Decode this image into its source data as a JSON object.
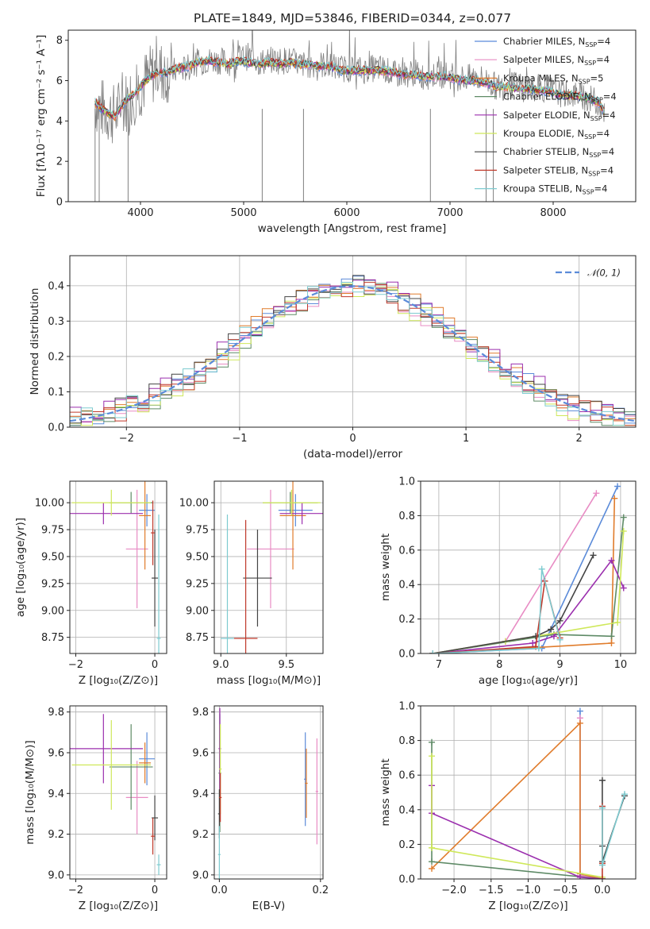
{
  "figure_title": "PLATE=1849, MJD=53846, FIBERID=0344, z=0.077",
  "colors": {
    "Chabrier MILES": "#5b8bd9",
    "Salpeter MILES": "#e88cc4",
    "Kroupa MILES": "#e07c2c",
    "Chabrier ELODIE": "#5e8a66",
    "Salpeter ELODIE": "#9b2fae",
    "Kroupa ELODIE": "#cfe85a",
    "Chabrier STELIB": "#444444",
    "Salpeter STELIB": "#c0392b",
    "Kroupa STELIB": "#7ecbd0"
  },
  "chart_data": [
    {
      "id": "spectrum",
      "type": "line",
      "title": "PLATE=1849, MJD=53846, FIBERID=0344, z=0.077",
      "xlabel": "wavelength [Angstrom, rest frame]",
      "ylabel": "Flux [fλ10⁻¹⁷ erg cm⁻² s⁻¹ A⁻¹]",
      "xlim": [
        3300,
        8800
      ],
      "ylim": [
        0,
        8.5
      ],
      "xticks": [
        4000,
        5000,
        6000,
        7000,
        8000
      ],
      "yticks": [
        0,
        2,
        4,
        6,
        8
      ],
      "grid": false,
      "legend_position": "top-right",
      "legend": [
        {
          "model": "Chabrier MILES",
          "label": "Chabrier MILES, N",
          "sub": "SSP",
          "eq": "=4"
        },
        {
          "model": "Salpeter MILES",
          "label": "Salpeter MILES, N",
          "sub": "SSP",
          "eq": "=4"
        },
        {
          "model": "Kroupa MILES",
          "label": "Kroupa MILES, N",
          "sub": "SSP",
          "eq": "=5"
        },
        {
          "model": "Chabrier ELODIE",
          "label": "Chabrier ELODIE, N",
          "sub": "SSP",
          "eq": "=4"
        },
        {
          "model": "Salpeter ELODIE",
          "label": "Salpeter ELODIE, N",
          "sub": "SSP",
          "eq": "=4"
        },
        {
          "model": "Kroupa ELODIE",
          "label": "Kroupa ELODIE, N",
          "sub": "SSP",
          "eq": "=4"
        },
        {
          "model": "Chabrier STELIB",
          "label": "Chabrier STELIB, N",
          "sub": "SSP",
          "eq": "=4"
        },
        {
          "model": "Salpeter STELIB",
          "label": "Salpeter STELIB, N",
          "sub": "SSP",
          "eq": "=4"
        },
        {
          "model": "Kroupa STELIB",
          "label": "Kroupa STELIB, N",
          "sub": "SSP",
          "eq": "=4"
        }
      ],
      "observed_flux": {
        "color": "#808080",
        "x": [
          3560,
          3650,
          3750,
          3850,
          3950,
          4050,
          4150,
          4250,
          4350,
          4450,
          4550,
          4650,
          4750,
          4850,
          4950,
          5050,
          5150,
          5250,
          5350,
          5450,
          5550,
          5650,
          5750,
          5850,
          5950,
          6050,
          6150,
          6250,
          6350,
          6450,
          6550,
          6650,
          6750,
          6850,
          6950,
          7050,
          7150,
          7250,
          7350,
          7450,
          7550,
          7650,
          7750,
          7850,
          7950,
          8050,
          8150,
          8250,
          8350,
          8450,
          8500
        ],
        "y": [
          4.9,
          4.5,
          4.3,
          4.9,
          5.4,
          6.0,
          6.5,
          6.4,
          6.5,
          6.6,
          6.9,
          7.0,
          7.0,
          6.9,
          7.1,
          7.2,
          6.9,
          7.0,
          7.0,
          7.0,
          6.8,
          6.8,
          6.8,
          6.7,
          6.6,
          6.6,
          6.5,
          6.6,
          6.6,
          6.3,
          6.3,
          6.4,
          6.2,
          6.3,
          6.3,
          6.2,
          6.1,
          6.2,
          6.0,
          5.7,
          5.7,
          5.8,
          5.7,
          5.6,
          5.6,
          5.4,
          5.3,
          5.3,
          5.1,
          4.9,
          4.4
        ]
      },
      "model_fit": {
        "x": [
          3560,
          3650,
          3750,
          3850,
          3950,
          4050,
          4150,
          4250,
          4350,
          4450,
          4550,
          4650,
          4750,
          4850,
          4950,
          5050,
          5150,
          5250,
          5350,
          5450,
          5550,
          5650,
          5750,
          5850,
          5950,
          6050,
          6150,
          6250,
          6350,
          6450,
          6550,
          6650,
          6750,
          6850,
          6950,
          7050,
          7150,
          7250,
          7350,
          7450,
          7550,
          7650,
          7750,
          7850,
          7950,
          8050,
          8150,
          8250,
          8350,
          8450,
          8500
        ],
        "y": [
          4.9,
          4.5,
          4.2,
          5.0,
          5.4,
          6.0,
          6.4,
          6.4,
          6.6,
          6.7,
          6.9,
          7.0,
          6.9,
          6.8,
          7.0,
          6.9,
          6.8,
          6.9,
          6.8,
          6.9,
          6.8,
          6.8,
          6.7,
          6.7,
          6.5,
          6.5,
          6.5,
          6.5,
          6.5,
          6.4,
          6.3,
          6.3,
          6.2,
          6.2,
          6.2,
          6.1,
          6.0,
          6.0,
          5.9,
          5.7,
          5.7,
          5.6,
          5.6,
          5.5,
          5.5,
          5.3,
          5.3,
          5.2,
          5.1,
          4.9,
          4.4
        ]
      },
      "edge_drops_x": [
        3560,
        3600,
        3880,
        5180,
        5580,
        6810,
        7350,
        7420
      ]
    },
    {
      "id": "residuals",
      "type": "line",
      "xlabel": "(data-model)/error",
      "ylabel": "Normed distribution",
      "xlim": [
        -2.5,
        2.5
      ],
      "ylim": [
        0,
        0.485
      ],
      "xticks": [
        -2,
        -1,
        0,
        1,
        2
      ],
      "yticks": [
        0.0,
        0.1,
        0.2,
        0.3,
        0.4
      ],
      "grid": true,
      "legend_position": "top-right",
      "legend_label": "𝒩(0, 1)",
      "reference_curve": {
        "label": "𝒩(0, 1)",
        "mean": 0,
        "sigma": 1,
        "style": "dashed",
        "color": "#5b8bd9"
      },
      "bins_start": -2.5,
      "bin_width": 0.1,
      "histograms": [
        {
          "model": "Chabrier MILES",
          "offset": 0.002
        },
        {
          "model": "Salpeter MILES",
          "offset": -0.012
        },
        {
          "model": "Kroupa MILES",
          "offset": 0.008
        },
        {
          "model": "Chabrier ELODIE",
          "offset": -0.006
        },
        {
          "model": "Salpeter ELODIE",
          "offset": 0.012
        },
        {
          "model": "Kroupa ELODIE",
          "offset": -0.014
        },
        {
          "model": "Chabrier STELIB",
          "offset": 0.006
        },
        {
          "model": "Salpeter STELIB",
          "offset": -0.004
        },
        {
          "model": "Kroupa STELIB",
          "offset": 0.0
        }
      ]
    },
    {
      "id": "age-vs-Z",
      "type": "scatter",
      "xlabel": "Z [log₁₀(Z/Z⊙)]",
      "ylabel": "age  [log₁₀(age/yr)]",
      "xlim": [
        -2.15,
        0.3
      ],
      "ylim": [
        8.6,
        10.2
      ],
      "xticks": [
        -2,
        0
      ],
      "yticks": [
        8.75,
        9.0,
        9.25,
        9.5,
        9.75,
        10.0
      ],
      "grid": true,
      "points": [
        {
          "model": "Chabrier MILES",
          "x": -0.2,
          "xerr": 0.2,
          "y": 9.93,
          "yerr": 0.15
        },
        {
          "model": "Salpeter MILES",
          "x": -0.45,
          "xerr": 0.28,
          "y": 9.57,
          "yerr": 0.55
        },
        {
          "model": "Kroupa MILES",
          "x": -0.25,
          "xerr": 0.15,
          "y": 9.88,
          "yerr": 0.5
        },
        {
          "model": "Chabrier ELODIE",
          "x": -0.6,
          "xerr": 0.55,
          "y": 10.0,
          "yerr": 0.1
        },
        {
          "model": "Salpeter ELODIE",
          "x": -1.3,
          "xerr": 1.0,
          "y": 9.9,
          "yerr": 0.1
        },
        {
          "model": "Kroupa ELODIE",
          "x": -1.1,
          "xerr": 1.0,
          "y": 10.0,
          "yerr": 0.12
        },
        {
          "model": "Chabrier STELIB",
          "x": 0.0,
          "xerr": 0.08,
          "y": 9.3,
          "yerr": 0.45
        },
        {
          "model": "Salpeter STELIB",
          "x": -0.05,
          "xerr": 0.05,
          "y": 9.72,
          "yerr": 0.3
        },
        {
          "model": "Kroupa STELIB",
          "x": 0.1,
          "xerr": 0.05,
          "y": 8.74,
          "yerr": 1.15
        }
      ]
    },
    {
      "id": "age-vs-mass",
      "type": "scatter",
      "xlabel": "mass [log₁₀(M/M⊙)]",
      "ylabel": "",
      "xlim": [
        8.95,
        9.78
      ],
      "ylim": [
        8.6,
        10.2
      ],
      "xticks": [
        9.0,
        9.5
      ],
      "yticks": [
        8.75,
        9.0,
        9.25,
        9.5,
        9.75,
        10.0
      ],
      "grid": true,
      "points": [
        {
          "model": "Chabrier MILES",
          "x": 9.57,
          "xerr": 0.13,
          "y": 9.93,
          "yerr": 0.15
        },
        {
          "model": "Salpeter MILES",
          "x": 9.38,
          "xerr": 0.18,
          "y": 9.57,
          "yerr": 0.55
        },
        {
          "model": "Kroupa MILES",
          "x": 9.55,
          "xerr": 0.1,
          "y": 9.88,
          "yerr": 0.5
        },
        {
          "model": "Chabrier ELODIE",
          "x": 9.53,
          "xerr": 0.21,
          "y": 10.0,
          "yerr": 0.1
        },
        {
          "model": "Salpeter ELODIE",
          "x": 9.62,
          "xerr": 0.17,
          "y": 9.9,
          "yerr": 0.1
        },
        {
          "model": "Kroupa ELODIE",
          "x": 9.54,
          "xerr": 0.22,
          "y": 10.0,
          "yerr": 0.12
        },
        {
          "model": "Chabrier STELIB",
          "x": 9.28,
          "xerr": 0.11,
          "y": 9.3,
          "yerr": 0.45
        },
        {
          "model": "Salpeter STELIB",
          "x": 9.19,
          "xerr": 0.09,
          "y": 8.74,
          "yerr": 1.1
        },
        {
          "model": "Kroupa STELIB",
          "x": 9.05,
          "xerr": 0.05,
          "y": 8.74,
          "yerr": 1.15
        }
      ]
    },
    {
      "id": "massweight-vs-age",
      "type": "line",
      "xlabel": "age  [log₁₀(age/yr)]",
      "ylabel": "mass weight",
      "xlim": [
        6.7,
        10.25
      ],
      "ylim": [
        0,
        1.0
      ],
      "xticks": [
        7,
        8,
        9,
        10
      ],
      "yticks": [
        0.0,
        0.2,
        0.4,
        0.6,
        0.8,
        1.0
      ],
      "grid": true,
      "series": [
        {
          "model": "Chabrier MILES",
          "x": [
            6.9,
            8.7,
            9.95
          ],
          "y": [
            0.0,
            0.03,
            0.97
          ]
        },
        {
          "model": "Salpeter MILES",
          "x": [
            6.9,
            8.1,
            9.6
          ],
          "y": [
            0.0,
            0.07,
            0.93
          ]
        },
        {
          "model": "Kroupa MILES",
          "x": [
            6.9,
            9.85,
            9.9
          ],
          "y": [
            0.0,
            0.06,
            0.9
          ]
        },
        {
          "model": "Chabrier ELODIE",
          "x": [
            6.9,
            8.9,
            9.85,
            10.05
          ],
          "y": [
            0.0,
            0.11,
            0.1,
            0.79
          ]
        },
        {
          "model": "Salpeter ELODIE",
          "x": [
            6.9,
            8.55,
            8.9,
            9.85,
            10.05
          ],
          "y": [
            0.0,
            0.06,
            0.1,
            0.54,
            0.38
          ]
        },
        {
          "model": "Kroupa ELODIE",
          "x": [
            6.9,
            8.1,
            9.95,
            10.05
          ],
          "y": [
            0.0,
            0.07,
            0.18,
            0.71
          ]
        },
        {
          "model": "Chabrier STELIB",
          "x": [
            6.9,
            8.6,
            8.85,
            9.0,
            9.55
          ],
          "y": [
            0.0,
            0.1,
            0.14,
            0.19,
            0.57
          ]
        },
        {
          "model": "Salpeter STELIB",
          "x": [
            6.9,
            8.6,
            8.75,
            9.0
          ],
          "y": [
            0.0,
            0.04,
            0.42,
            0.09
          ]
        },
        {
          "model": "Kroupa STELIB",
          "x": [
            6.9,
            8.65,
            8.7,
            9.0
          ],
          "y": [
            0.0,
            0.03,
            0.49,
            0.08
          ]
        }
      ]
    },
    {
      "id": "mass-vs-Z",
      "type": "scatter",
      "xlabel": "Z [log₁₀(Z/Z⊙)]",
      "ylabel": "mass [log₁₀(M/M⊙)]",
      "xlim": [
        -2.15,
        0.3
      ],
      "ylim": [
        8.98,
        9.83
      ],
      "xticks": [
        -2,
        0
      ],
      "yticks": [
        9.0,
        9.2,
        9.4,
        9.6,
        9.8
      ],
      "grid": true,
      "points": [
        {
          "model": "Chabrier MILES",
          "x": -0.2,
          "xerr": 0.2,
          "y": 9.57,
          "yerr": 0.13
        },
        {
          "model": "Salpeter MILES",
          "x": -0.45,
          "xerr": 0.28,
          "y": 9.38,
          "yerr": 0.18
        },
        {
          "model": "Kroupa MILES",
          "x": -0.25,
          "xerr": 0.15,
          "y": 9.55,
          "yerr": 0.1
        },
        {
          "model": "Chabrier ELODIE",
          "x": -0.6,
          "xerr": 0.55,
          "y": 9.53,
          "yerr": 0.21
        },
        {
          "model": "Salpeter ELODIE",
          "x": -1.3,
          "xerr": 1.0,
          "y": 9.62,
          "yerr": 0.17
        },
        {
          "model": "Kroupa ELODIE",
          "x": -1.1,
          "xerr": 1.0,
          "y": 9.54,
          "yerr": 0.22
        },
        {
          "model": "Chabrier STELIB",
          "x": 0.0,
          "xerr": 0.08,
          "y": 9.28,
          "yerr": 0.11
        },
        {
          "model": "Salpeter STELIB",
          "x": -0.05,
          "xerr": 0.05,
          "y": 9.19,
          "yerr": 0.09
        },
        {
          "model": "Kroupa STELIB",
          "x": 0.1,
          "xerr": 0.05,
          "y": 9.05,
          "yerr": 0.05
        }
      ]
    },
    {
      "id": "mass-vs-EBV",
      "type": "scatter",
      "xlabel": "E(B-V)",
      "ylabel": "",
      "xlim": [
        -0.01,
        0.205
      ],
      "ylim": [
        8.98,
        9.83
      ],
      "xticks": [
        0.0,
        0.2
      ],
      "yticks": [
        9.0,
        9.2,
        9.4,
        9.6,
        9.8
      ],
      "grid": true,
      "points": [
        {
          "model": "Chabrier MILES",
          "x": 0.17,
          "y": 9.47,
          "yerr": 0.23
        },
        {
          "model": "Salpeter MILES",
          "x": 0.193,
          "y": 9.41,
          "yerr": 0.26
        },
        {
          "model": "Kroupa MILES",
          "x": 0.172,
          "y": 9.45,
          "yerr": 0.17
        },
        {
          "model": "Chabrier ELODIE",
          "x": 0.001,
          "y": 9.5,
          "yerr": 0.29
        },
        {
          "model": "Salpeter ELODIE",
          "x": 0.001,
          "y": 9.62,
          "yerr": 0.2
        },
        {
          "model": "Kroupa ELODIE",
          "x": 0.002,
          "y": 9.52,
          "yerr": 0.22
        },
        {
          "model": "Chabrier STELIB",
          "x": 0.0,
          "y": 9.3,
          "yerr": 0.12
        },
        {
          "model": "Salpeter STELIB",
          "x": 0.002,
          "y": 9.38,
          "yerr": 0.12
        },
        {
          "model": "Kroupa STELIB",
          "x": 0.0,
          "y": 9.1,
          "yerr": 0.14
        }
      ]
    },
    {
      "id": "massweight-vs-Z",
      "type": "line",
      "xlabel": "Z [log₁₀(Z/Z⊙)]",
      "ylabel": "mass weight",
      "xlim": [
        -2.45,
        0.45
      ],
      "ylim": [
        0,
        1.0
      ],
      "xticks": [
        -2.0,
        -1.5,
        -1.0,
        -0.5,
        0.0
      ],
      "yticks": [
        0.0,
        0.2,
        0.4,
        0.6,
        0.8,
        1.0
      ],
      "grid": true,
      "series": [
        {
          "model": "Chabrier MILES",
          "x": [
            -0.3,
            -0.3,
            0.0
          ],
          "y": [
            0.97,
            0.03,
            0.0
          ]
        },
        {
          "model": "Salpeter MILES",
          "x": [
            -0.3,
            -0.3,
            0.0
          ],
          "y": [
            0.93,
            0.02,
            0.0
          ]
        },
        {
          "model": "Kroupa MILES",
          "x": [
            -2.3,
            -0.3,
            -0.3,
            0.0
          ],
          "y": [
            0.06,
            0.9,
            0.03,
            0.0
          ]
        },
        {
          "model": "Chabrier ELODIE",
          "x": [
            -2.3,
            -2.3,
            0.0
          ],
          "y": [
            0.79,
            0.1,
            0.0
          ]
        },
        {
          "model": "Salpeter ELODIE",
          "x": [
            -2.3,
            -2.3,
            -0.3,
            0.0
          ],
          "y": [
            0.54,
            0.38,
            0.01,
            0.0
          ]
        },
        {
          "model": "Kroupa ELODIE",
          "x": [
            -2.3,
            -2.3,
            0.0
          ],
          "y": [
            0.71,
            0.18,
            0.01
          ]
        },
        {
          "model": "Chabrier STELIB",
          "x": [
            0.0,
            0.0,
            0.0,
            0.3
          ],
          "y": [
            0.57,
            0.19,
            0.1,
            0.48
          ]
        },
        {
          "model": "Salpeter STELIB",
          "x": [
            0.0,
            0.0,
            0.0
          ],
          "y": [
            0.42,
            0.09,
            0.0
          ]
        },
        {
          "model": "Kroupa STELIB",
          "x": [
            0.0,
            0.0,
            0.3
          ],
          "y": [
            0.41,
            0.08,
            0.49
          ]
        }
      ]
    }
  ]
}
